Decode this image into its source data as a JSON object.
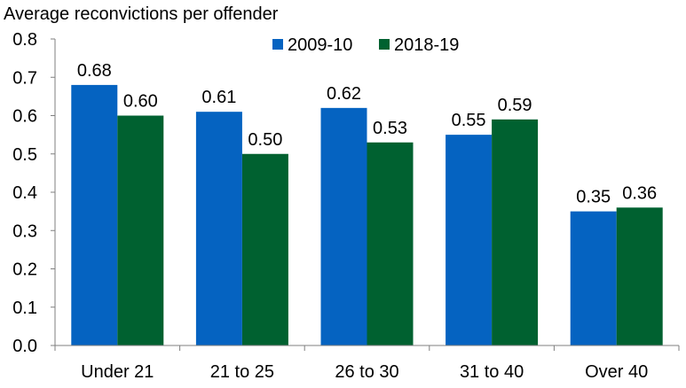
{
  "chart_data": {
    "type": "bar",
    "title": "",
    "ylabel": "Average reconvictions per offender",
    "xlabel": "",
    "categories": [
      "Under 21",
      "21 to 25",
      "26 to 30",
      "31 to 40",
      "Over 40"
    ],
    "series": [
      {
        "name": "2009-10",
        "color": "#0563C1",
        "values": [
          0.68,
          0.61,
          0.62,
          0.55,
          0.35
        ],
        "labels": [
          "0.68",
          "0.61",
          "0.62",
          "0.55",
          "0.35"
        ]
      },
      {
        "name": "2018-19",
        "color": "#006130",
        "values": [
          0.6,
          0.5,
          0.53,
          0.59,
          0.36
        ],
        "labels": [
          "0.60",
          "0.50",
          "0.53",
          "0.59",
          "0.36"
        ]
      }
    ],
    "ylim": [
      0,
      0.8
    ],
    "yticks": [
      "0.0",
      "0.1",
      "0.2",
      "0.3",
      "0.4",
      "0.5",
      "0.6",
      "0.7",
      "0.8"
    ],
    "grid": false,
    "legend_position": "top-right"
  }
}
